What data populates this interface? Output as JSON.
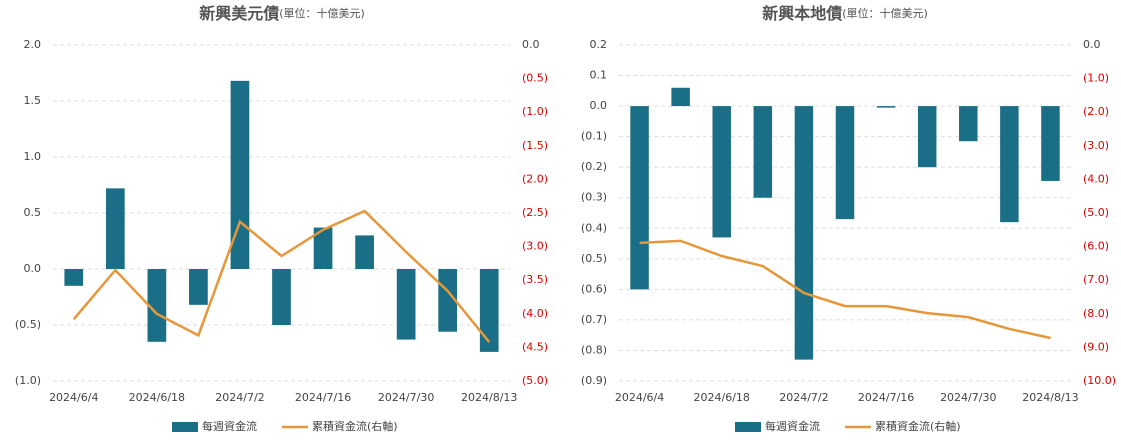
{
  "chart_data": [
    {
      "type": "bar-line",
      "title": "新興美元債",
      "subtitle": "(單位：十億美元)",
      "categories": [
        "2024/6/4",
        null,
        "2024/6/18",
        null,
        "2024/7/2",
        null,
        "2024/7/16",
        null,
        "2024/7/30",
        null,
        "2024/8/13"
      ],
      "series": [
        {
          "name": "每週資金流",
          "color": "#1a6e85",
          "type": "bar",
          "values": [
            -0.15,
            0.72,
            -0.65,
            -0.32,
            1.68,
            -0.5,
            0.37,
            0.3,
            -0.63,
            -0.56,
            -0.74
          ]
        },
        {
          "name": "累積資金流(右軸)",
          "color": "#e6973a",
          "type": "line",
          "axis": "y2",
          "values": [
            -4.08,
            -3.35,
            -4.0,
            -4.32,
            -2.63,
            -3.14,
            -2.75,
            -2.47,
            -3.08,
            -3.66,
            -4.42
          ]
        }
      ],
      "ylim": [
        -1.0,
        2.0
      ],
      "yticks": [
        {
          "value": 2.0,
          "label": "2.0"
        },
        1.5,
        {
          "value": 1.0,
          "label": "1.0"
        },
        0.5,
        {
          "value": 0.0,
          "label": "0.0"
        },
        {
          "value": -0.5,
          "label": "(0.5)"
        },
        {
          "value": -1.0,
          "label": "(1.0)"
        }
      ],
      "y2lim": [
        -5.0,
        0.0
      ],
      "y2ticks": [
        {
          "value": 0.0,
          "label": "0.0"
        },
        {
          "value": -0.5,
          "label": "(0.5)"
        },
        {
          "value": -1.0,
          "label": "(1.0)"
        },
        {
          "value": -1.5,
          "label": "(1.5)"
        },
        {
          "value": -2.0,
          "label": "(2.0)"
        },
        {
          "value": -2.5,
          "label": "(2.5)"
        },
        {
          "value": -3.0,
          "label": "(3.0)"
        },
        {
          "value": -3.5,
          "label": "(3.5)"
        },
        {
          "value": -4.0,
          "label": "(4.0)"
        },
        {
          "value": -4.5,
          "label": "(4.5)"
        },
        {
          "value": -5.0,
          "label": "(5.0)"
        }
      ],
      "grid": true,
      "legend": "bottom"
    },
    {
      "type": "bar-line",
      "title": "新興本地債",
      "subtitle": "(單位：十億美元)",
      "categories": [
        "2024/6/4",
        null,
        "2024/6/18",
        null,
        "2024/7/2",
        null,
        "2024/7/16",
        null,
        "2024/7/30",
        null,
        "2024/8/13"
      ],
      "series": [
        {
          "name": "每週資金流",
          "color": "#1a6e85",
          "type": "bar",
          "values": [
            -0.6,
            0.06,
            -0.43,
            -0.3,
            -0.83,
            -0.37,
            -0.005,
            -0.2,
            -0.115,
            -0.38,
            -0.245
          ]
        },
        {
          "name": "累積資金流(右軸)",
          "color": "#e6973a",
          "type": "line",
          "axis": "y2",
          "values": [
            -5.89,
            -5.83,
            -6.28,
            -6.58,
            -7.38,
            -7.77,
            -7.77,
            -7.98,
            -8.1,
            -8.45,
            -8.72
          ]
        }
      ],
      "ylim": [
        -0.9,
        0.2
      ],
      "yticks": [
        0.2,
        0.1,
        {
          "value": 0.0,
          "label": "0.0"
        },
        {
          "value": -0.1,
          "label": "(0.1)"
        },
        {
          "value": -0.2,
          "label": "(0.2)"
        },
        {
          "value": -0.3,
          "label": "(0.3)"
        },
        {
          "value": -0.4,
          "label": "(0.4)"
        },
        {
          "value": -0.5,
          "label": "(0.5)"
        },
        {
          "value": -0.6,
          "label": "(0.6)"
        },
        {
          "value": -0.7,
          "label": "(0.7)"
        },
        {
          "value": -0.8,
          "label": "(0.8)"
        },
        {
          "value": -0.9,
          "label": "(0.9)"
        }
      ],
      "y2lim": [
        -10.0,
        0.0
      ],
      "y2ticks": [
        {
          "value": 0.0,
          "label": "0.0"
        },
        {
          "value": -1.0,
          "label": "(1.0)"
        },
        {
          "value": -2.0,
          "label": "(2.0)"
        },
        {
          "value": -3.0,
          "label": "(3.0)"
        },
        {
          "value": -4.0,
          "label": "(4.0)"
        },
        {
          "value": -5.0,
          "label": "(5.0)"
        },
        {
          "value": -6.0,
          "label": "(6.0)"
        },
        {
          "value": -7.0,
          "label": "(7.0)"
        },
        {
          "value": -8.0,
          "label": "(8.0)"
        },
        {
          "value": -9.0,
          "label": "(9.0)"
        },
        {
          "value": -10.0,
          "label": "(10.0)"
        }
      ],
      "grid": true,
      "legend": "bottom"
    }
  ]
}
